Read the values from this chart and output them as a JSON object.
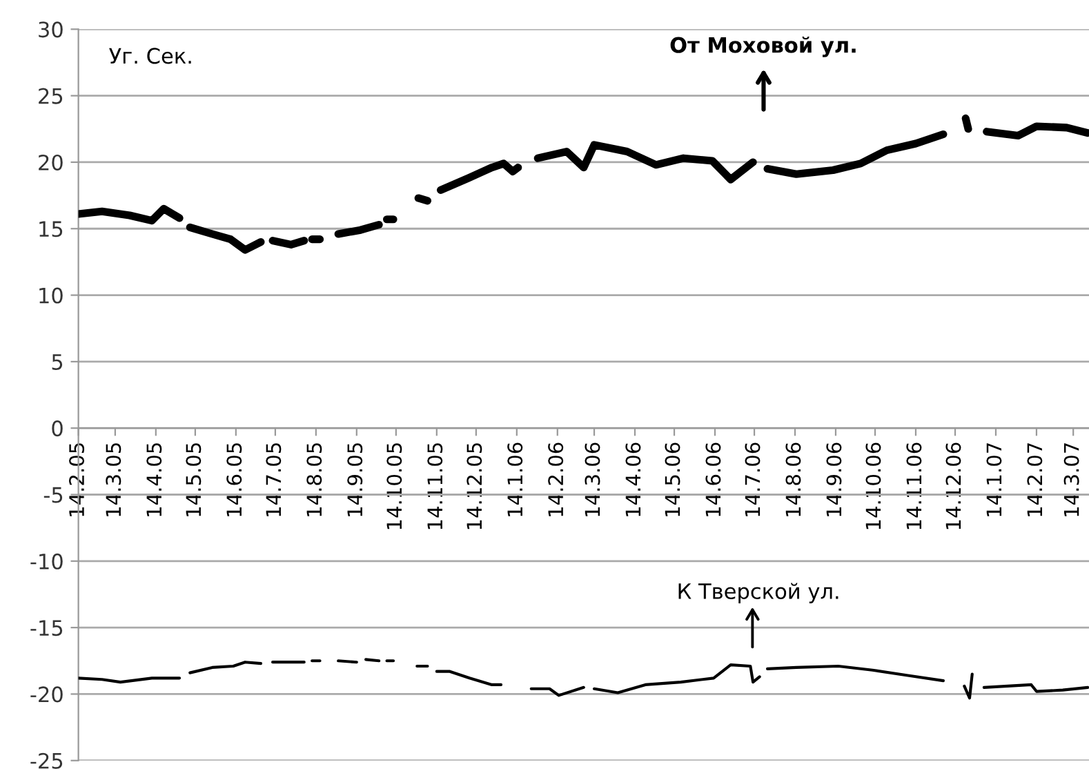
{
  "chart_data": {
    "type": "line",
    "x": [
      "2005-02-14",
      "2005-03-04",
      "2005-03-25",
      "2005-04-11",
      "2005-04-20",
      "2005-05-02",
      "2005-05-06",
      "2005-05-10",
      "2005-05-27",
      "2005-06-10",
      "2005-06-21",
      "2005-07-03",
      "2005-07-08",
      "2005-07-12",
      "2005-07-26",
      "2005-08-05",
      "2005-08-08",
      "2005-08-11",
      "2005-08-17",
      "2005-08-20",
      "2005-08-31",
      "2005-09-17",
      "2005-10-01",
      "2005-10-04",
      "2005-10-07",
      "2005-10-12",
      "2005-10-15",
      "2005-10-31",
      "2005-11-07",
      "2005-11-10",
      "2005-11-17",
      "2005-12-08",
      "2005-12-26",
      "2006-01-04",
      "2006-01-11",
      "2006-01-15",
      "2006-01-20",
      "2006-01-30",
      "2006-02-21",
      "2006-03-06",
      "2006-03-14",
      "2006-04-08",
      "2006-04-30",
      "2006-05-21",
      "2006-06-12",
      "2006-06-26",
      "2006-07-13",
      "2006-07-16",
      "2006-07-24",
      "2006-08-15",
      "2006-09-12",
      "2006-10-03",
      "2006-10-23",
      "2006-11-14",
      "2006-12-05",
      "2006-12-09",
      "2006-12-22",
      "2006-12-24",
      "2006-12-28",
      "2007-01-07",
      "2007-01-31",
      "2007-02-14",
      "2007-03-09",
      "2007-03-25"
    ],
    "series": [
      {
        "color": "#000000",
        "values": [
          16.1,
          16.3,
          16.0,
          15.6,
          16.5,
          15.8,
          null,
          15.1,
          14.6,
          14.2,
          13.4,
          14.0,
          null,
          14.1,
          13.8,
          14.1,
          null,
          14.2,
          14.2,
          null,
          14.6,
          14.9,
          15.3,
          null,
          15.7,
          15.7,
          null,
          17.3,
          17.1,
          null,
          17.9,
          18.8,
          19.6,
          19.9,
          19.3,
          19.6,
          null,
          20.3,
          20.8,
          19.6,
          21.3,
          20.8,
          19.8,
          20.3,
          20.1,
          18.7,
          20.0,
          null,
          19.5,
          19.1,
          19.4,
          19.9,
          20.9,
          21.4,
          22.1,
          null,
          23.3,
          22.5,
          null,
          22.3,
          22.0,
          22.7,
          22.6,
          22.2
        ]
      },
      {
        "color": "#000000",
        "x": [
          "2005-02-14",
          "2005-03-04",
          "2005-03-18",
          "2005-04-11",
          "2005-05-02",
          "2005-05-06",
          "2005-05-10",
          "2005-05-27",
          "2005-06-12",
          "2005-06-21",
          "2005-07-03",
          "2005-07-07",
          "2005-07-12",
          "2005-08-05",
          "2005-08-08",
          "2005-08-11",
          "2005-08-17",
          "2005-08-20",
          "2005-08-31",
          "2005-09-14",
          "2005-09-17",
          "2005-09-21",
          "2005-10-01",
          "2005-10-04",
          "2005-10-07",
          "2005-10-12",
          "2005-10-15",
          "2005-10-30",
          "2005-11-07",
          "2005-11-10",
          "2005-11-14",
          "2005-11-24",
          "2005-12-09",
          "2005-12-26",
          "2006-01-02",
          "2006-01-16",
          "2006-01-25",
          "2006-02-08",
          "2006-02-15",
          "2006-03-06",
          "2006-03-10",
          "2006-03-14",
          "2006-04-01",
          "2006-04-22",
          "2006-05-19",
          "2006-06-13",
          "2006-06-26",
          "2006-07-11",
          "2006-07-13",
          "2006-07-18",
          "2006-07-20",
          "2006-07-24",
          "2006-08-15",
          "2006-09-16",
          "2006-10-12",
          "2006-11-08",
          "2006-12-05",
          "2006-12-10",
          "2006-12-21",
          "2006-12-25",
          "2006-12-27",
          "2007-01-01",
          "2007-01-05",
          "2007-02-10",
          "2007-02-14",
          "2007-03-06",
          "2007-03-25"
        ],
        "values": [
          -18.8,
          -18.9,
          -19.1,
          -18.8,
          -18.8,
          null,
          -18.4,
          -18.0,
          -17.9,
          -17.6,
          -17.7,
          null,
          -17.6,
          -17.6,
          null,
          -17.5,
          -17.5,
          null,
          -17.5,
          -17.6,
          null,
          -17.4,
          -17.5,
          null,
          -17.5,
          -17.5,
          null,
          -17.9,
          -17.9,
          null,
          -18.3,
          -18.3,
          -18.8,
          -19.3,
          -19.3,
          null,
          -19.6,
          -19.6,
          -20.1,
          -19.5,
          null,
          -19.6,
          -19.9,
          -19.3,
          -19.1,
          -18.8,
          -17.8,
          -17.9,
          -19.1,
          -18.7,
          null,
          -18.1,
          -18.0,
          -17.9,
          -18.2,
          -18.6,
          -19.0,
          null,
          -19.4,
          -20.3,
          -18.5,
          null,
          -19.5,
          -19.3,
          -19.8,
          -19.7,
          -19.5
        ]
      }
    ],
    "xlim": [
      "2005-02-14",
      "2007-03-26"
    ],
    "xticks": [
      {
        "value": "2005-02-14",
        "label": "14.2.05"
      },
      {
        "value": "2005-03-14",
        "label": "14.3.05"
      },
      {
        "value": "2005-04-14",
        "label": "14.4.05"
      },
      {
        "value": "2005-05-14",
        "label": "14.5.05"
      },
      {
        "value": "2005-06-14",
        "label": "14.6.05"
      },
      {
        "value": "2005-07-14",
        "label": "14.7.05"
      },
      {
        "value": "2005-08-14",
        "label": "14.8.05"
      },
      {
        "value": "2005-09-14",
        "label": "14.9.05"
      },
      {
        "value": "2005-10-14",
        "label": "14.10.05"
      },
      {
        "value": "2005-11-14",
        "label": "14.11.05"
      },
      {
        "value": "2005-12-14",
        "label": "14.12.05"
      },
      {
        "value": "2006-01-14",
        "label": "14.1.06"
      },
      {
        "value": "2006-02-14",
        "label": "14.2.06"
      },
      {
        "value": "2006-03-14",
        "label": "14.3.06"
      },
      {
        "value": "2006-04-14",
        "label": "14.4.06"
      },
      {
        "value": "2006-05-14",
        "label": "14.5.06"
      },
      {
        "value": "2006-06-14",
        "label": "14.6.06"
      },
      {
        "value": "2006-07-14",
        "label": "14.7.06"
      },
      {
        "value": "2006-08-14",
        "label": "14.8.06"
      },
      {
        "value": "2006-09-14",
        "label": "14.9.06"
      },
      {
        "value": "2006-10-14",
        "label": "14.10.06"
      },
      {
        "value": "2006-11-14",
        "label": "14.11.06"
      },
      {
        "value": "2006-12-14",
        "label": "14.12.06"
      },
      {
        "value": "2007-01-14",
        "label": "14.1.07"
      },
      {
        "value": "2007-02-14",
        "label": "14.2.07"
      },
      {
        "value": "2007-03-14",
        "label": "14.3.07"
      }
    ],
    "ylim": [
      -25,
      30
    ],
    "yticks": [
      -25,
      -20,
      -15,
      -10,
      -5,
      0,
      5,
      10,
      15,
      20,
      25,
      30
    ],
    "grid": "y",
    "marker": "none",
    "line_style": "solid",
    "annotations": [
      "Уг. Сек.",
      "От Моховой ул.",
      "К Тверской ул."
    ]
  }
}
